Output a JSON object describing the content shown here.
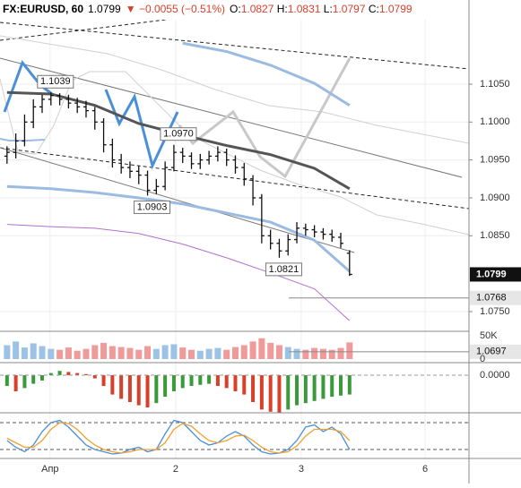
{
  "header": {
    "symbol": "FX:EURUSD, 60",
    "last": "1.0799",
    "change": "▼ −0.0055 (−0.51%)",
    "ohlc": [
      {
        "name": "O:",
        "value": "1.0827"
      },
      {
        "name": "H:",
        "value": "1.0831"
      },
      {
        "name": "L:",
        "value": "1.0797"
      },
      {
        "name": "C:",
        "value": "1.0799"
      }
    ]
  },
  "chart_data": {
    "type": "ohlc",
    "open": [
      1.0955,
      1.096,
      1.0975,
      1.1,
      1.102,
      1.103,
      1.1035,
      1.103,
      1.1025,
      1.102,
      1.1015,
      1.1,
      1.097,
      1.095,
      1.094,
      1.0935,
      1.093,
      1.091,
      1.0915,
      1.094,
      1.096,
      1.0955,
      1.0945,
      1.095,
      1.0955,
      1.096,
      1.095,
      1.094,
      1.0925,
      1.09,
      1.085,
      1.084,
      1.083,
      1.0845,
      1.086,
      1.0858,
      1.0855,
      1.0852,
      1.0848,
      1.0827
    ],
    "high": [
      1.0968,
      1.0985,
      1.101,
      1.103,
      1.1036,
      1.1039,
      1.1038,
      1.1036,
      1.1032,
      1.1028,
      1.102,
      1.1005,
      1.0978,
      1.0958,
      1.0948,
      1.0942,
      1.0936,
      1.0925,
      1.0948,
      1.097,
      1.0966,
      1.096,
      1.0958,
      1.0962,
      1.0968,
      1.0965,
      1.0956,
      1.0946,
      1.093,
      1.0905,
      1.0858,
      1.0846,
      1.0852,
      1.0868,
      1.0866,
      1.0864,
      1.086,
      1.0858,
      1.0854,
      1.0831
    ],
    "low": [
      1.0945,
      1.0952,
      1.0968,
      1.0992,
      1.1012,
      1.1022,
      1.1022,
      1.1018,
      1.1012,
      1.1006,
      1.099,
      1.096,
      1.094,
      1.0932,
      1.0926,
      1.0918,
      1.0903,
      1.0905,
      1.091,
      1.0935,
      1.0946,
      1.0938,
      1.0938,
      1.0944,
      1.0948,
      1.0942,
      1.0932,
      1.0916,
      1.089,
      1.084,
      1.0832,
      1.0821,
      1.0824,
      1.084,
      1.085,
      1.0848,
      1.0845,
      1.0842,
      1.0834,
      1.0797
    ],
    "close": [
      1.096,
      1.0975,
      1.1,
      1.102,
      1.103,
      1.1035,
      1.103,
      1.1025,
      1.102,
      1.1015,
      1.1,
      1.097,
      1.095,
      1.094,
      1.0935,
      1.093,
      1.091,
      1.0915,
      1.094,
      1.096,
      1.0955,
      1.0945,
      1.095,
      1.0955,
      1.096,
      1.095,
      1.094,
      1.0925,
      1.09,
      1.085,
      1.084,
      1.083,
      1.0845,
      1.086,
      1.0858,
      1.0855,
      1.0852,
      1.0848,
      1.084,
      1.0799
    ],
    "bar_color": "#111111",
    "xlim": [
      -0.8,
      52.6
    ],
    "xticks": [
      {
        "value": 4.9,
        "label": "Апр"
      },
      {
        "value": 19.2,
        "label": "2"
      },
      {
        "value": 33.5,
        "label": "3"
      },
      {
        "value": 47.6,
        "label": "6"
      }
    ],
    "ylim": [
      1.0685,
      1.1135
    ],
    "yticks": [
      {
        "value": 1.105,
        "label": "1.1050"
      },
      {
        "value": 1.1,
        "label": "1.1000"
      },
      {
        "value": 1.095,
        "label": "1.0950"
      },
      {
        "value": 1.09,
        "label": "1.0900"
      },
      {
        "value": 1.085,
        "label": "1.0850"
      },
      {
        "value": 1.075,
        "label": "1.0750"
      }
    ],
    "grid": true,
    "price_labels": [
      {
        "value": 1.0799,
        "label": "1.0799",
        "style": "last"
      },
      {
        "value": 1.0768,
        "label": "1.0768",
        "style": "level"
      },
      {
        "value": 1.0697,
        "label": "1.0697",
        "style": "level"
      }
    ],
    "annotations": [
      {
        "value": 1.1039,
        "label": "1.1039",
        "side": "high"
      },
      {
        "value": 1.097,
        "label": "1.0970",
        "side": "high"
      },
      {
        "value": 1.0903,
        "label": "1.0903",
        "side": "low"
      },
      {
        "value": 1.0821,
        "label": "1.0821",
        "side": "low"
      }
    ],
    "overlays": [
      {
        "color": "#555555",
        "width": 3,
        "x": [
          0,
          5,
          10,
          15,
          20,
          25,
          30,
          35,
          39
        ],
        "values": [
          1.1039,
          1.1037,
          1.1022,
          1.0998,
          1.0983,
          1.0969,
          1.0957,
          1.0939,
          1.0912
        ]
      },
      {
        "color": "#9bbbe0",
        "width": 3,
        "x": [
          0,
          5,
          10,
          15,
          20,
          25,
          30,
          35,
          39
        ],
        "values": [
          1.0915,
          1.0912,
          1.0907,
          1.09,
          1.0892,
          1.088,
          1.0868,
          1.0844,
          1.0803
        ]
      },
      {
        "color": "#9bbbe0",
        "width": 3,
        "x": [
          20,
          25,
          30,
          35,
          39
        ],
        "values": [
          1.1104,
          1.1093,
          1.1075,
          1.1051,
          1.1022
        ]
      },
      {
        "color": "#b070d0",
        "width": 1,
        "x": [
          0,
          5,
          10,
          15,
          20,
          25,
          30,
          35,
          39
        ],
        "values": [
          1.0865,
          1.0862,
          1.086,
          1.0853,
          1.0839,
          1.0821,
          1.0801,
          1.078,
          1.0738
        ]
      }
    ],
    "volume": {
      "values": [
        30000,
        38000,
        25000,
        34000,
        28000,
        22000,
        20000,
        25000,
        18000,
        22000,
        30000,
        35000,
        28000,
        26000,
        24000,
        20000,
        28000,
        22000,
        30000,
        32000,
        25000,
        20000,
        18000,
        22000,
        24000,
        20000,
        26000,
        30000,
        38000,
        45000,
        35000,
        30000,
        26000,
        22000,
        20000,
        24000,
        22000,
        20000,
        24000,
        36000
      ],
      "up_color": "#9cc3e6",
      "down_color": "#f09a9a",
      "ylim": [
        0,
        60000
      ],
      "yticks": [
        {
          "value": 50000,
          "label": "50K"
        },
        0
      ]
    },
    "macd": {
      "values": [
        -0.001,
        -0.0015,
        -0.0012,
        -0.0008,
        -0.0005,
        0.0002,
        0.0004,
        0.0003,
        0.0002,
        0.0001,
        -0.0003,
        -0.001,
        -0.0018,
        -0.0022,
        -0.0025,
        -0.0028,
        -0.003,
        -0.0026,
        -0.002,
        -0.0015,
        -0.0012,
        -0.001,
        -0.0009,
        -0.0008,
        -0.001,
        -0.0012,
        -0.0015,
        -0.0018,
        -0.0025,
        -0.0032,
        -0.0034,
        -0.0035,
        -0.0032,
        -0.0028,
        -0.0026,
        -0.0024,
        -0.0022,
        -0.002,
        -0.0019,
        -0.0018
      ],
      "up_color": "#3a9a3a",
      "down_color": "#d8402a",
      "ylim": [
        -0.004,
        0.001
      ],
      "yticks": [
        {
          "value": 0,
          "label": "0.0000"
        }
      ]
    },
    "stochastic": {
      "ylim": [
        0,
        100
      ],
      "levels": [
        80,
        20
      ],
      "series": [
        {
          "color": "#4a90d9",
          "values": [
            40,
            25,
            15,
            30,
            60,
            80,
            85,
            70,
            50,
            30,
            20,
            15,
            10,
            12,
            20,
            25,
            15,
            20,
            55,
            85,
            80,
            60,
            40,
            30,
            35,
            50,
            60,
            50,
            30,
            15,
            10,
            12,
            20,
            40,
            70,
            75,
            60,
            70,
            55,
            20
          ]
        },
        {
          "color": "#f0a030",
          "values": [
            45,
            35,
            25,
            25,
            40,
            65,
            80,
            78,
            65,
            45,
            30,
            20,
            15,
            12,
            15,
            20,
            20,
            20,
            35,
            65,
            78,
            72,
            55,
            40,
            35,
            40,
            50,
            52,
            40,
            25,
            15,
            12,
            15,
            28,
            50,
            65,
            65,
            65,
            60,
            40
          ]
        }
      ]
    }
  }
}
